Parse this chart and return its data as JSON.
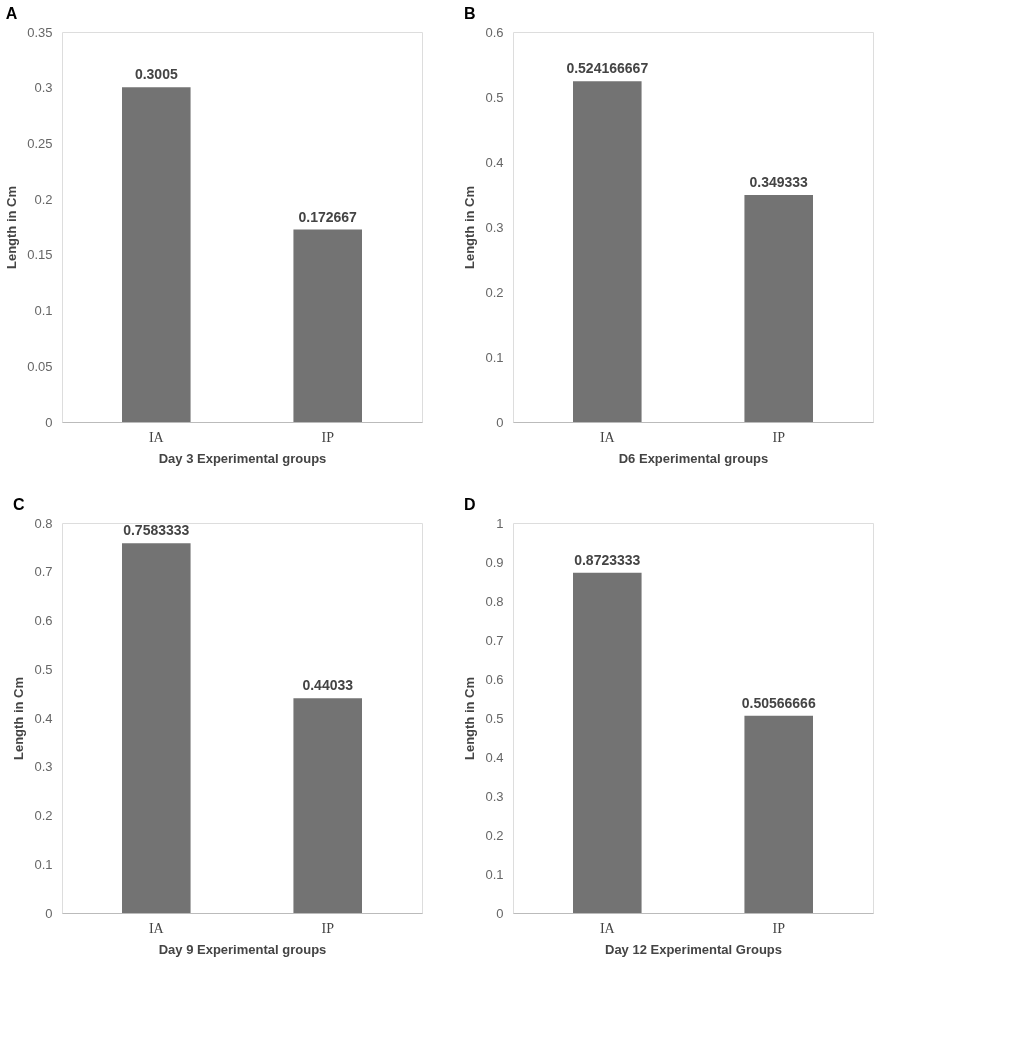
{
  "chart_data": [
    {
      "type": "bar",
      "title": "A",
      "xlabel": "Day 3 Experimental groups",
      "ylabel": "Length in Cm",
      "categories": [
        "IA",
        "IP"
      ],
      "values": [
        0.3005,
        0.172667
      ],
      "color": "#737373",
      "ylim": [
        0,
        0.35
      ],
      "yticks": [
        0,
        0.05,
        0.1,
        0.15,
        0.2,
        0.25,
        0.3,
        0.35
      ],
      "data_labels": true,
      "grid": false,
      "legend": false
    },
    {
      "type": "bar",
      "title": "B",
      "xlabel": "D6 Experimental groups",
      "ylabel": "Length in Cm",
      "categories": [
        "IA",
        "IP"
      ],
      "values": [
        0.524166667,
        0.349333
      ],
      "color": "#737373",
      "ylim": [
        0,
        0.6
      ],
      "yticks": [
        0,
        0.1,
        0.2,
        0.3,
        0.4,
        0.5,
        0.6
      ],
      "data_labels": true,
      "grid": false,
      "legend": false
    },
    {
      "type": "bar",
      "title": "C",
      "xlabel": "Day 9 Experimental groups",
      "ylabel": "Length in Cm",
      "categories": [
        "IA",
        "IP"
      ],
      "values": [
        0.7583333,
        0.44033
      ],
      "color": "#737373",
      "ylim": [
        0,
        0.8
      ],
      "yticks": [
        0,
        0.1,
        0.2,
        0.3,
        0.4,
        0.5,
        0.6,
        0.7,
        0.8
      ],
      "data_labels": true,
      "grid": false,
      "legend": false
    },
    {
      "type": "bar",
      "title": "D",
      "xlabel": "Day 12 Experimental Groups",
      "ylabel": "Length in Cm",
      "categories": [
        "IA",
        "IP"
      ],
      "values": [
        0.8723333,
        0.50566666
      ],
      "color": "#737373",
      "ylim": [
        0,
        1
      ],
      "yticks": [
        0,
        0.1,
        0.2,
        0.3,
        0.4,
        0.5,
        0.6,
        0.7,
        0.8,
        0.9,
        1
      ],
      "data_labels": true,
      "grid": false,
      "legend": false
    }
  ]
}
